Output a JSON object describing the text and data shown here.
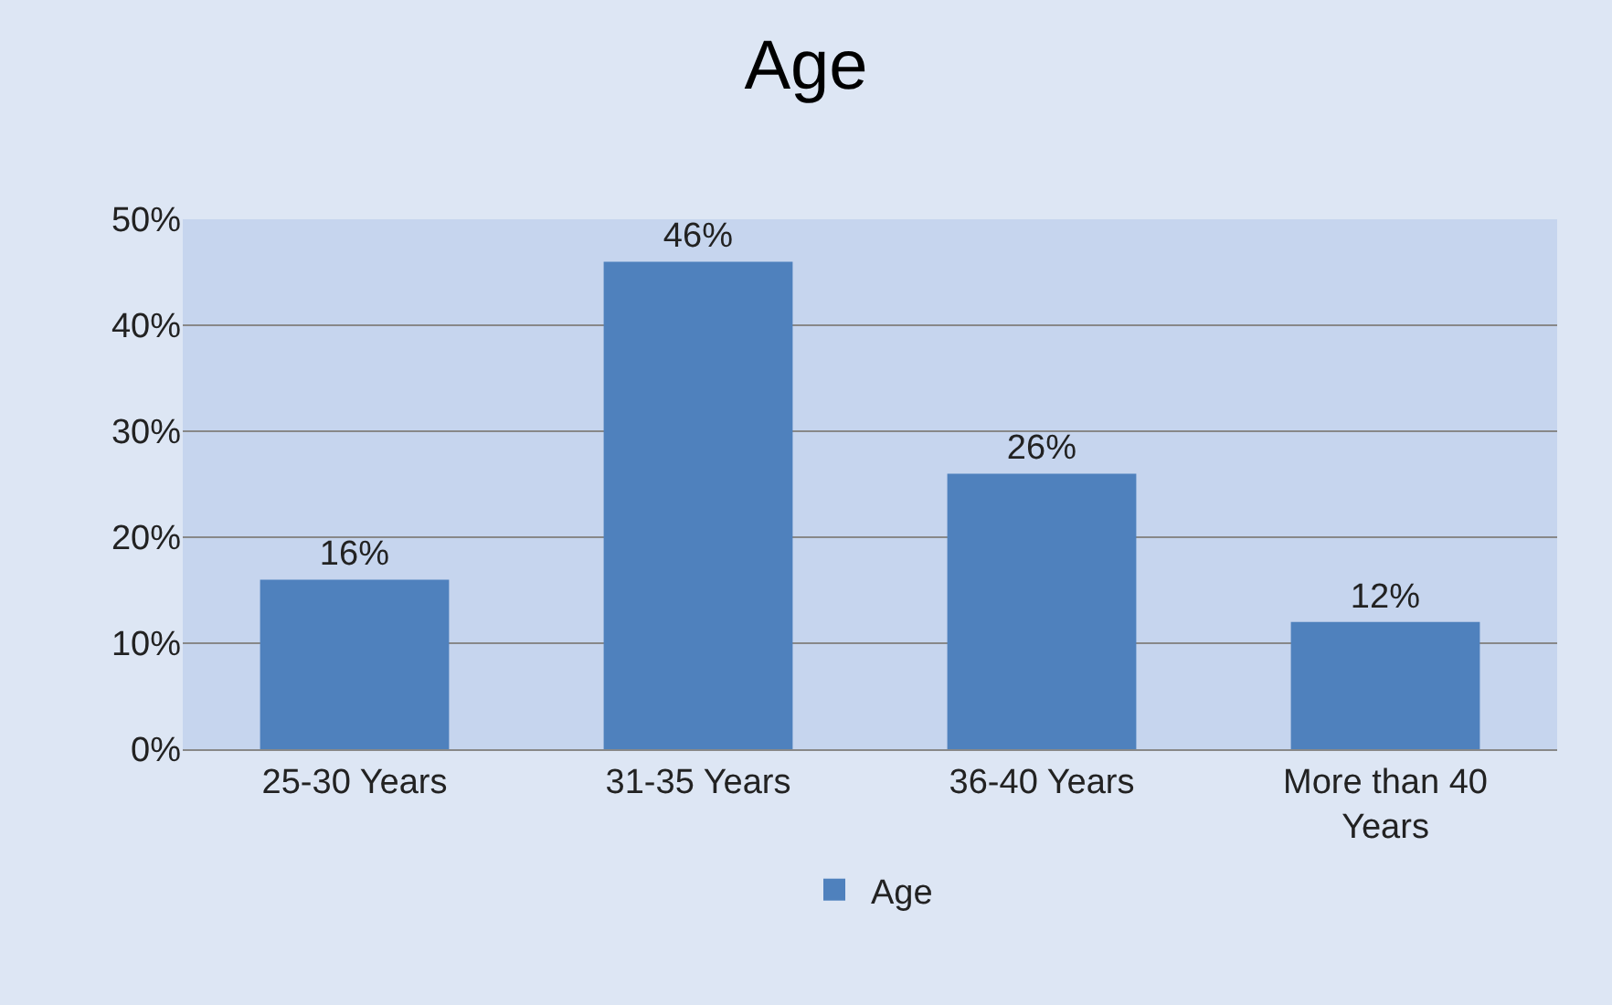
{
  "chart_data": {
    "type": "bar",
    "title": "Age",
    "categories": [
      "25-30 Years",
      "31-35 Years",
      "36-40 Years",
      "More than 40 Years"
    ],
    "series": [
      {
        "name": "Age",
        "color": "#4f81bd",
        "values": [
          16,
          46,
          26,
          12
        ],
        "value_labels": [
          "16%",
          "46%",
          "26%",
          "12%"
        ]
      }
    ],
    "ylim": [
      0,
      50
    ],
    "yticks": [
      {
        "value": 0,
        "label": "0%"
      },
      {
        "value": 10,
        "label": "10%"
      },
      {
        "value": 20,
        "label": "20%"
      },
      {
        "value": 30,
        "label": "30%"
      },
      {
        "value": 40,
        "label": "40%"
      },
      {
        "value": 50,
        "label": "50%"
      }
    ],
    "grid": "y",
    "legend": "bottom"
  }
}
